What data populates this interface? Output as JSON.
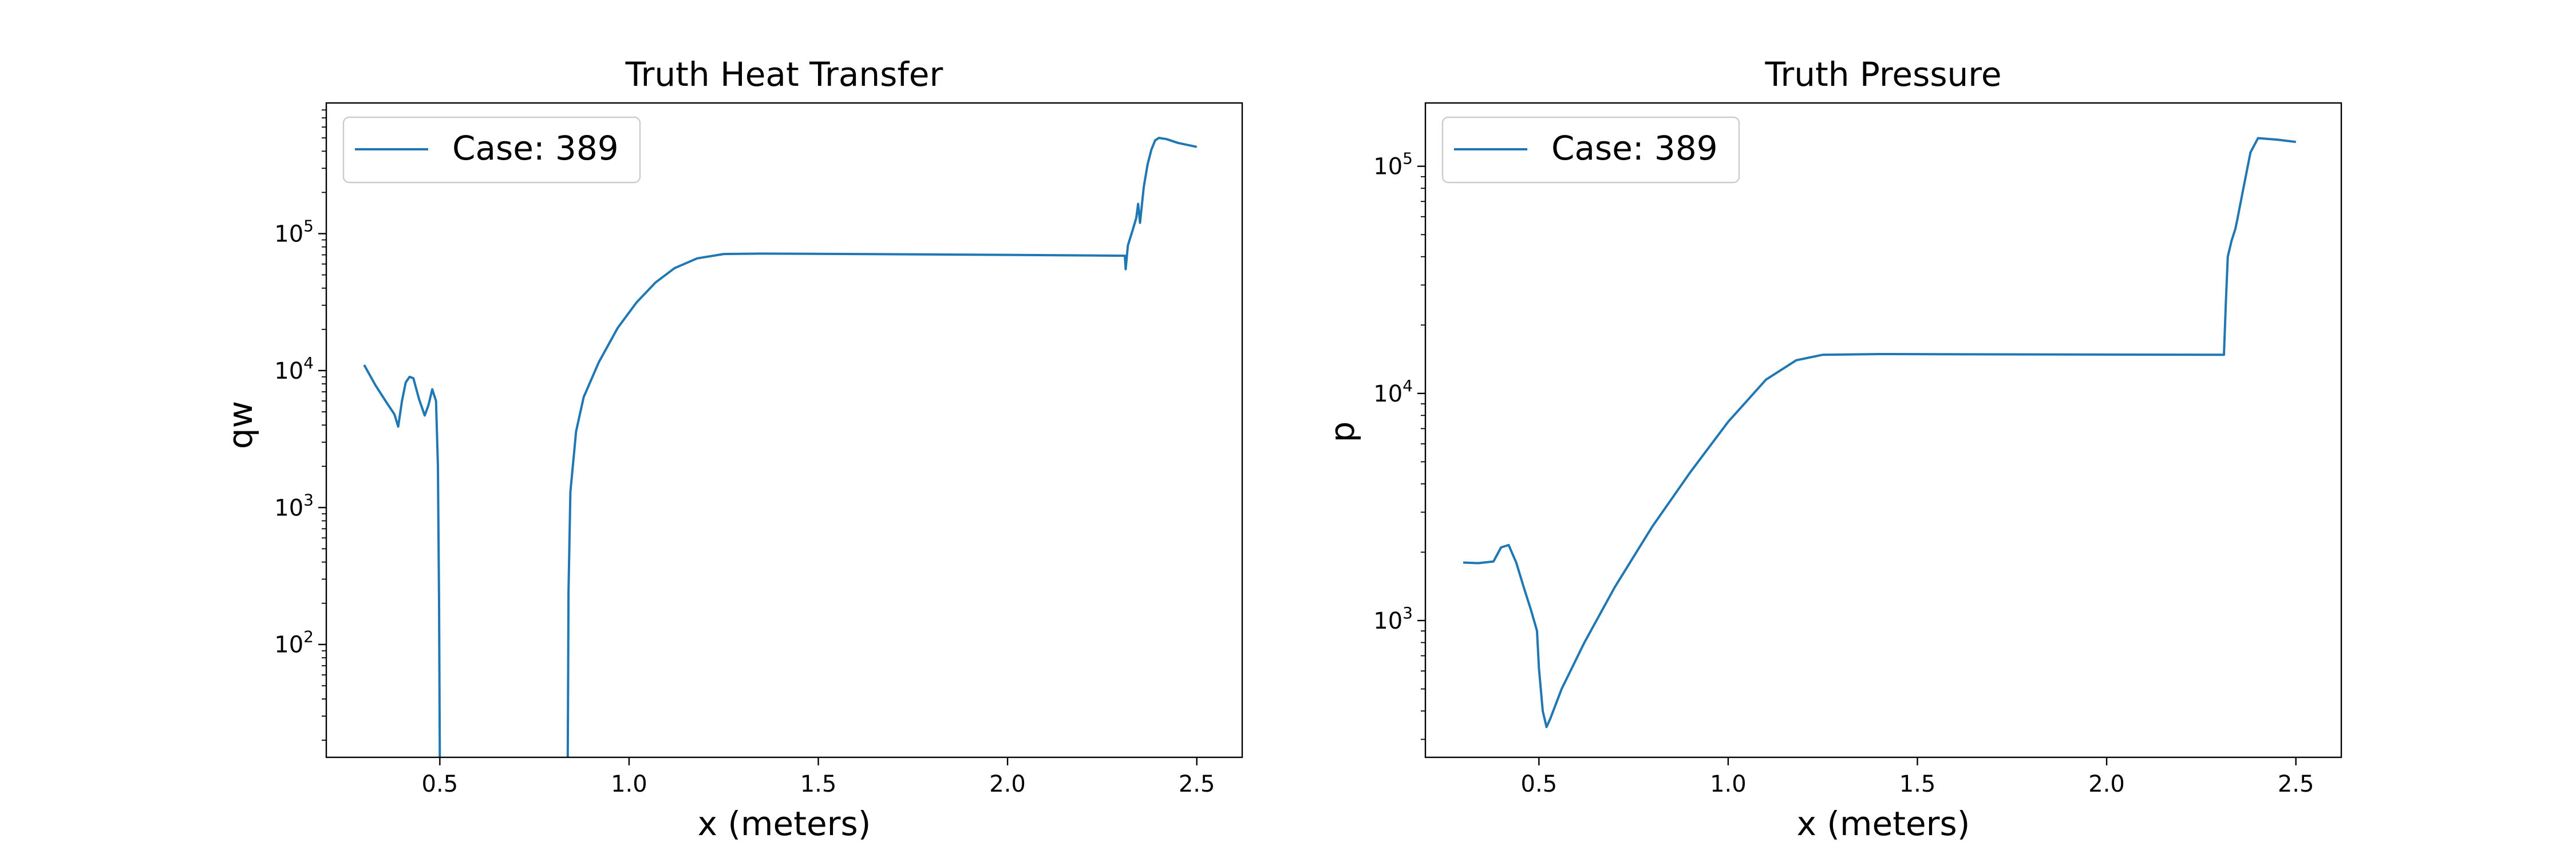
{
  "chart_data": [
    {
      "type": "line",
      "title": "Truth Heat Transfer",
      "xlabel": "x (meters)",
      "ylabel": "qw",
      "yscale": "log",
      "xlim": [
        0.2,
        2.62
      ],
      "ylim": [
        15,
        900000
      ],
      "xticks": [
        0.5,
        1.0,
        1.5,
        2.0,
        2.5
      ],
      "xtick_labels": [
        "0.5",
        "1.0",
        "1.5",
        "2.0",
        "2.5"
      ],
      "yticks": [
        100,
        1000,
        10000,
        100000
      ],
      "ytick_labels": [
        {
          "base": "10",
          "exp": "2"
        },
        {
          "base": "10",
          "exp": "3"
        },
        {
          "base": "10",
          "exp": "4"
        },
        {
          "base": "10",
          "exp": "5"
        }
      ],
      "legend": {
        "position": "upper left",
        "entries": [
          "Case: 389"
        ]
      },
      "grid": false,
      "color": "#1f77b4",
      "series": [
        {
          "name": "Case: 389",
          "segments": [
            [
              [
                0.3,
                11000
              ],
              [
                0.33,
                7800
              ],
              [
                0.36,
                5800
              ],
              [
                0.38,
                4800
              ],
              [
                0.39,
                3900
              ],
              [
                0.4,
                6000
              ],
              [
                0.41,
                8200
              ],
              [
                0.42,
                9000
              ],
              [
                0.43,
                8800
              ],
              [
                0.445,
                6200
              ],
              [
                0.46,
                4700
              ],
              [
                0.47,
                5600
              ],
              [
                0.48,
                7300
              ],
              [
                0.49,
                6000
              ],
              [
                0.495,
                2000
              ],
              [
                0.498,
                200
              ],
              [
                0.5,
                15
              ]
            ],
            [
              [
                0.838,
                15
              ],
              [
                0.839,
                60
              ],
              [
                0.84,
                240
              ],
              [
                0.845,
                1300
              ],
              [
                0.86,
                3600
              ],
              [
                0.88,
                6400
              ],
              [
                0.92,
                11500
              ],
              [
                0.97,
                20500
              ],
              [
                1.02,
                31500
              ],
              [
                1.07,
                44000
              ],
              [
                1.12,
                56000
              ],
              [
                1.18,
                66000
              ],
              [
                1.25,
                71000
              ],
              [
                1.35,
                71500
              ],
              [
                1.6,
                71000
              ],
              [
                2.0,
                70000
              ],
              [
                2.31,
                69000
              ],
              [
                2.312,
                55000
              ],
              [
                2.318,
                82000
              ],
              [
                2.33,
                105000
              ],
              [
                2.34,
                130000
              ],
              [
                2.345,
                165000
              ],
              [
                2.35,
                120000
              ],
              [
                2.36,
                220000
              ],
              [
                2.37,
                320000
              ],
              [
                2.38,
                410000
              ],
              [
                2.39,
                480000
              ],
              [
                2.4,
                500000
              ],
              [
                2.42,
                490000
              ],
              [
                2.45,
                460000
              ],
              [
                2.5,
                430000
              ]
            ]
          ]
        }
      ]
    },
    {
      "type": "line",
      "title": "Truth Pressure",
      "xlabel": "x (meters)",
      "ylabel": "p",
      "yscale": "log",
      "xlim": [
        0.2,
        2.62
      ],
      "ylim": [
        250,
        190000
      ],
      "xticks": [
        0.5,
        1.0,
        1.5,
        2.0,
        2.5
      ],
      "xtick_labels": [
        "0.5",
        "1.0",
        "1.5",
        "2.0",
        "2.5"
      ],
      "yticks": [
        1000,
        10000,
        100000
      ],
      "ytick_labels": [
        {
          "base": "10",
          "exp": "3"
        },
        {
          "base": "10",
          "exp": "4"
        },
        {
          "base": "10",
          "exp": "5"
        }
      ],
      "legend": {
        "position": "upper left",
        "entries": [
          "Case: 389"
        ]
      },
      "grid": false,
      "color": "#1f77b4",
      "series": [
        {
          "name": "Case: 389",
          "segments": [
            [
              [
                0.3,
                1800
              ],
              [
                0.34,
                1790
              ],
              [
                0.38,
                1820
              ],
              [
                0.4,
                2100
              ],
              [
                0.42,
                2150
              ],
              [
                0.44,
                1800
              ],
              [
                0.46,
                1400
              ],
              [
                0.48,
                1100
              ],
              [
                0.495,
                900
              ],
              [
                0.5,
                620
              ],
              [
                0.51,
                400
              ],
              [
                0.52,
                340
              ],
              [
                0.53,
                370
              ],
              [
                0.56,
                500
              ],
              [
                0.62,
                800
              ],
              [
                0.7,
                1400
              ],
              [
                0.8,
                2600
              ],
              [
                0.9,
                4500
              ],
              [
                1.0,
                7500
              ],
              [
                1.1,
                11500
              ],
              [
                1.18,
                14000
              ],
              [
                1.25,
                14800
              ],
              [
                1.4,
                14900
              ],
              [
                1.8,
                14850
              ],
              [
                2.31,
                14800
              ],
              [
                2.315,
                25000
              ],
              [
                2.32,
                40000
              ],
              [
                2.33,
                47000
              ],
              [
                2.34,
                53000
              ],
              [
                2.345,
                58000
              ],
              [
                2.36,
                78000
              ],
              [
                2.38,
                115000
              ],
              [
                2.4,
                133000
              ],
              [
                2.45,
                131000
              ],
              [
                2.5,
                128000
              ]
            ]
          ]
        }
      ]
    }
  ]
}
